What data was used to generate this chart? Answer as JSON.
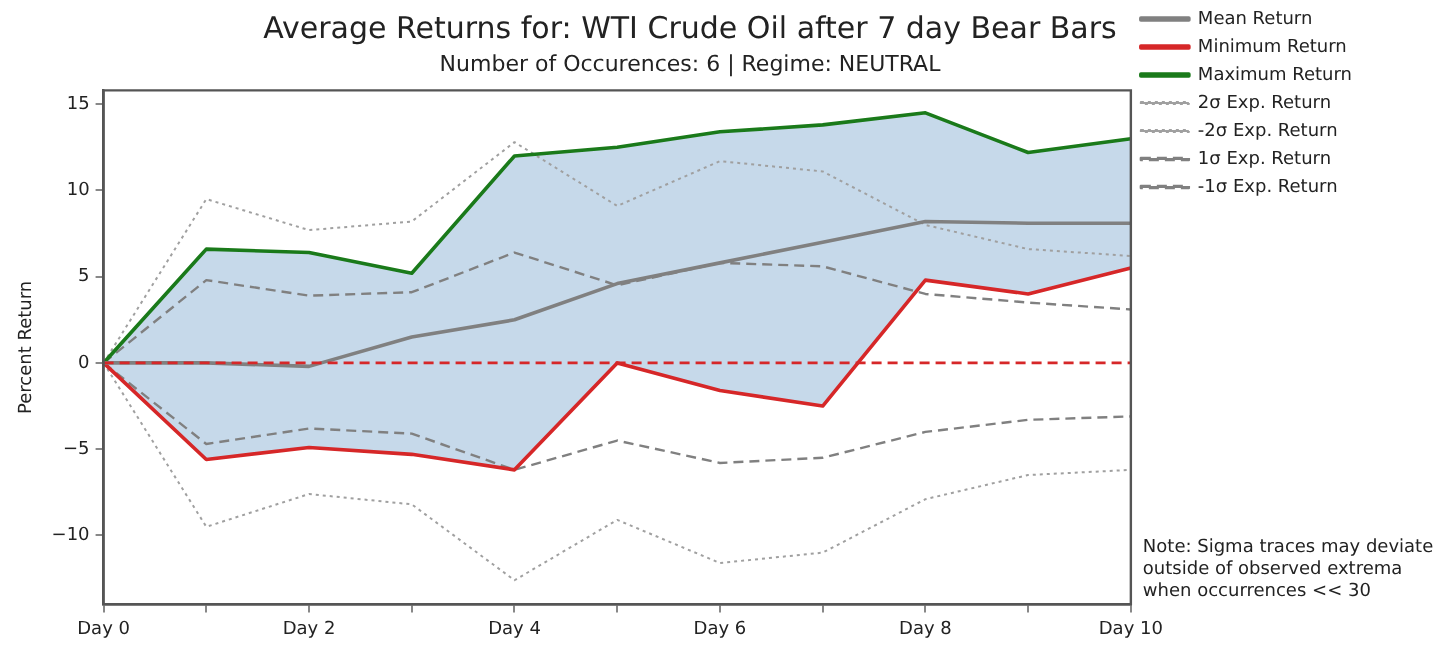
{
  "chart_data": {
    "type": "line",
    "title": "Average Returns for: WTI Crude Oil after 7 day Bear Bars",
    "subtitle": "Number of Occurences: 6 | Regime: NEUTRAL",
    "ylabel": "Percent Return",
    "categories": [
      "Day 0",
      null,
      "Day 2",
      null,
      "Day 4",
      null,
      "Day 6",
      null,
      "Day 8",
      null,
      "Day 10"
    ],
    "ylim": [
      -14,
      15.8
    ],
    "yticks": [
      -10,
      -5,
      0,
      5,
      10,
      15
    ],
    "series": [
      {
        "name": "Mean Return",
        "color": "#808080",
        "line_style": "solid",
        "values": [
          0,
          0,
          -0.2,
          1.5,
          2.5,
          4.6,
          5.8,
          7.0,
          8.2,
          8.1,
          8.1
        ],
        "lower": [
          0,
          -5.6,
          -4.9,
          -5.3,
          -6.2,
          0,
          -1.6,
          -2.5,
          4.8,
          4.0,
          5.5
        ],
        "upper": [
          0,
          6.6,
          6.4,
          5.2,
          12.0,
          12.5,
          13.4,
          13.8,
          14.5,
          12.2,
          13.0
        ]
      },
      {
        "name": "Minimum Return",
        "color": "#d62728",
        "line_style": "solid",
        "values": [
          0,
          -5.6,
          -4.9,
          -5.3,
          -6.2,
          0,
          -1.6,
          -2.5,
          4.8,
          4.0,
          5.5
        ]
      },
      {
        "name": "Maximum Return",
        "color": "#1a7a1a",
        "line_style": "solid",
        "values": [
          0,
          6.6,
          6.4,
          5.2,
          12.0,
          12.5,
          13.4,
          13.8,
          14.5,
          12.2,
          13.0
        ]
      },
      {
        "name": "2σ Exp. Return",
        "color": "#a0a0a0",
        "line_style": "dotted",
        "values": [
          0,
          9.5,
          7.7,
          8.2,
          12.8,
          9.1,
          11.7,
          11.1,
          8.0,
          6.6,
          6.2
        ]
      },
      {
        "name": "-2σ Exp. Return",
        "color": "#a0a0a0",
        "line_style": "dotted",
        "values": [
          0,
          -9.5,
          -7.6,
          -8.2,
          -12.6,
          -9.1,
          -11.6,
          -11.0,
          -7.9,
          -6.5,
          -6.2
        ]
      },
      {
        "name": "1σ Exp. Return",
        "color": "#808080",
        "line_style": "dashed",
        "values": [
          0,
          4.8,
          3.9,
          4.1,
          6.4,
          4.5,
          5.8,
          5.6,
          4.0,
          3.5,
          3.1
        ]
      },
      {
        "name": "-1σ Exp. Return",
        "color": "#808080",
        "line_style": "dashed",
        "values": [
          0,
          -4.7,
          -3.8,
          -4.1,
          -6.2,
          -4.5,
          -5.8,
          -5.5,
          -4.0,
          -3.3,
          -3.1
        ]
      }
    ],
    "ref_lines": [
      {
        "axis": "y",
        "value": 0,
        "color": "#d62728",
        "line_style": "dashed"
      }
    ],
    "annotations": [
      "Note: Sigma traces may deviate\noutside of observed extrema\nwhen occurrences << 30"
    ],
    "grid": false,
    "legend": "right",
    "marker": "none"
  }
}
